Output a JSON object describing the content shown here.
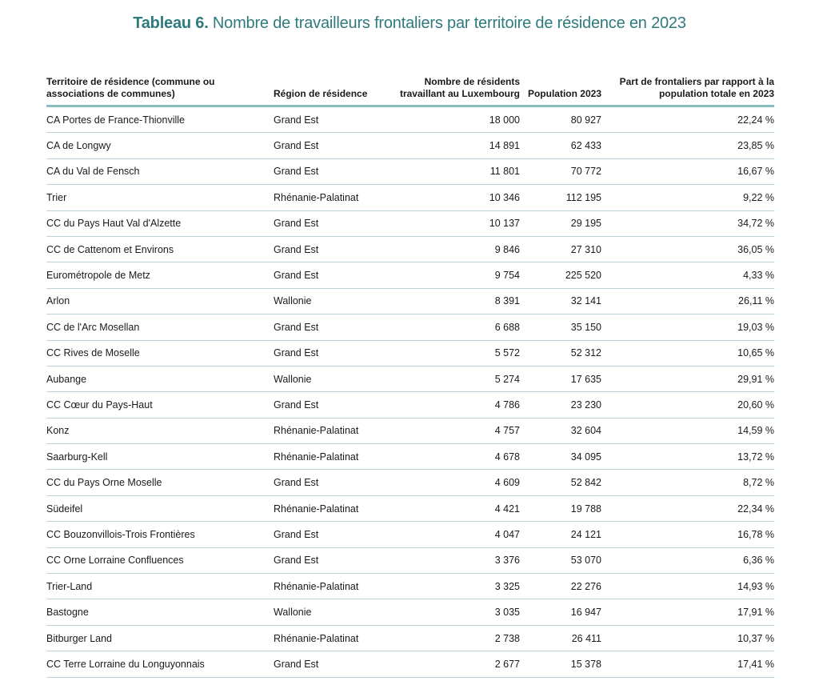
{
  "title": {
    "bold": "Tableau 6.",
    "rest": " Nombre de travailleurs frontaliers par territoire de résidence en 2023"
  },
  "headers": [
    "Territoire de résidence (commune ou associations de communes)",
    "Région de résidence",
    "Nombre de résidents travaillant au Luxembourg",
    "Population 2023",
    "Part de frontaliers par rapport à la population totale en 2023"
  ],
  "rows": [
    [
      "CA Portes de France-Thionville",
      "Grand Est",
      "18 000",
      "80 927",
      "22,24 %"
    ],
    [
      "CA de Longwy",
      "Grand Est",
      "14 891",
      "62 433",
      "23,85 %"
    ],
    [
      "CA du Val de Fensch",
      "Grand Est",
      "11 801",
      "70 772",
      "16,67 %"
    ],
    [
      "Trier",
      "Rhénanie-Palatinat",
      "10 346",
      "112 195",
      "9,22 %"
    ],
    [
      "CC du Pays Haut Val d'Alzette",
      "Grand Est",
      "10 137",
      "29 195",
      "34,72 %"
    ],
    [
      "CC de Cattenom et Environs",
      "Grand Est",
      "9 846",
      "27 310",
      "36,05 %"
    ],
    [
      "Eurométropole de Metz",
      "Grand Est",
      "9 754",
      "225 520",
      "4,33 %"
    ],
    [
      "Arlon",
      "Wallonie",
      "8 391",
      "32 141",
      "26,11 %"
    ],
    [
      "CC de l'Arc Mosellan",
      "Grand Est",
      "6 688",
      "35 150",
      "19,03 %"
    ],
    [
      "CC Rives de Moselle",
      "Grand Est",
      "5 572",
      "52 312",
      "10,65 %"
    ],
    [
      "Aubange",
      "Wallonie",
      "5 274",
      "17 635",
      "29,91 %"
    ],
    [
      "CC Cœur du Pays-Haut",
      "Grand Est",
      "4 786",
      "23 230",
      "20,60 %"
    ],
    [
      "Konz",
      "Rhénanie-Palatinat",
      "4 757",
      "32 604",
      "14,59 %"
    ],
    [
      "Saarburg-Kell",
      "Rhénanie-Palatinat",
      "4 678",
      "34 095",
      "13,72 %"
    ],
    [
      "CC du Pays Orne Moselle",
      "Grand Est",
      "4 609",
      "52 842",
      "8,72 %"
    ],
    [
      "Südeifel",
      "Rhénanie-Palatinat",
      "4 421",
      "19 788",
      "22,34 %"
    ],
    [
      "CC Bouzonvillois-Trois Frontières",
      "Grand Est",
      "4 047",
      "24 121",
      "16,78 %"
    ],
    [
      "CC Orne Lorraine Confluences",
      "Grand Est",
      "3 376",
      "53 070",
      "6,36 %"
    ],
    [
      "Trier-Land",
      "Rhénanie-Palatinat",
      "3 325",
      "22 276",
      "14,93 %"
    ],
    [
      "Bastogne",
      "Wallonie",
      "3 035",
      "16 947",
      "17,91 %"
    ],
    [
      "Bitburger Land",
      "Rhénanie-Palatinat",
      "2 738",
      "26 411",
      "10,37 %"
    ],
    [
      "CC Terre Lorraine du Longuyonnais",
      "Grand Est",
      "2 677",
      "15 378",
      "17,41 %"
    ]
  ]
}
